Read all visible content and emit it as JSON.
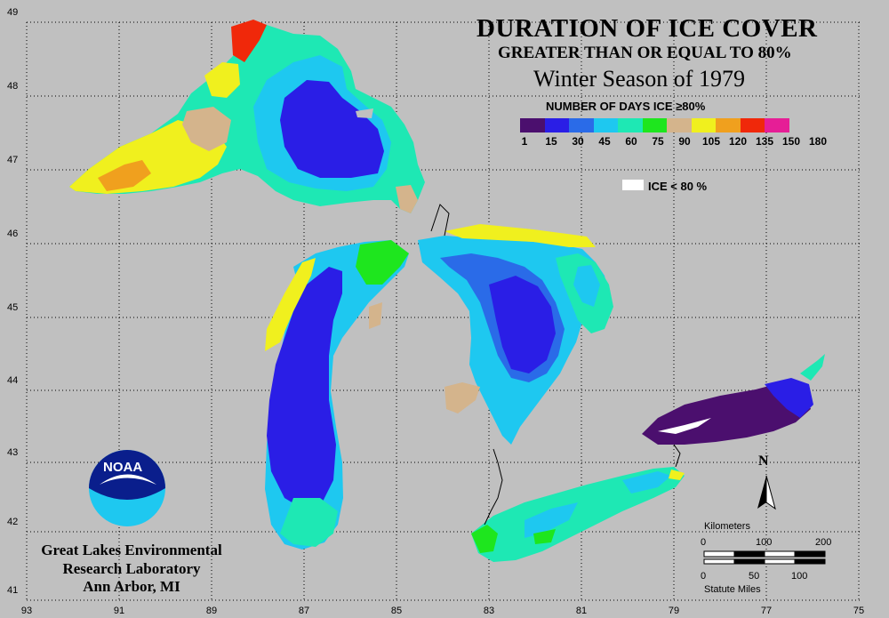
{
  "title": {
    "line1": "DURATION OF ICE COVER",
    "line2": "GREATER THAN OR EQUAL TO 80%",
    "line3": "Winter Season of 1979"
  },
  "legend": {
    "title": "NUMBER OF DAYS ICE ≥80%",
    "ticks": [
      "1",
      "15",
      "30",
      "45",
      "60",
      "75",
      "90",
      "105",
      "120",
      "135",
      "150",
      "180"
    ],
    "colors": [
      "#4b0f6e",
      "#2a1ee6",
      "#2a6be8",
      "#1ec8f0",
      "#1ee8b4",
      "#1ee61e",
      "#d4b48c",
      "#f0f01e",
      "#f0a01e",
      "#f0280a",
      "#e61e96"
    ],
    "ice_label": "ICE < 80 %"
  },
  "axes": {
    "latitudes": [
      "49",
      "48",
      "47",
      "46",
      "45",
      "44",
      "43",
      "42",
      "41"
    ],
    "longitudes": [
      "93",
      "91",
      "89",
      "87",
      "85",
      "83",
      "81",
      "79",
      "77",
      "75"
    ]
  },
  "logo_text": "NOAA",
  "credit": {
    "line1": "Great Lakes Environmental",
    "line2": "Research Laboratory",
    "line3": "Ann Arbor, MI"
  },
  "north": "N",
  "scale": {
    "km_label": "Kilometers",
    "km_ticks": [
      "0",
      "100",
      "200"
    ],
    "mi_ticks": [
      "0",
      "50",
      "100"
    ],
    "mi_label": "Statute Miles"
  }
}
